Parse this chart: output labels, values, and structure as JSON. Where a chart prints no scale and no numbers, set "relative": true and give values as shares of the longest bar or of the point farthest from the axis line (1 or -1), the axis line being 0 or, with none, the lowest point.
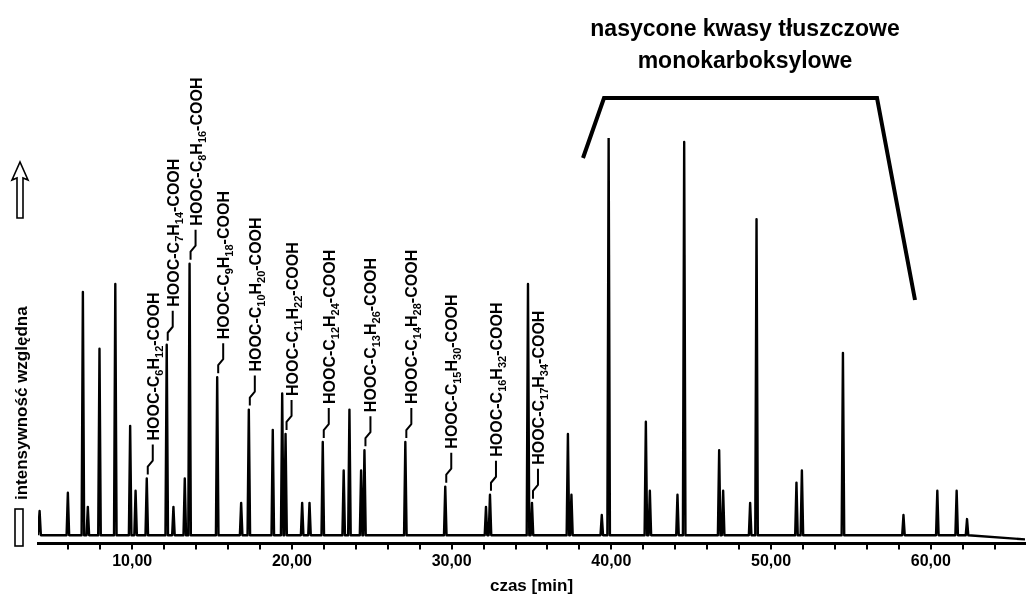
{
  "chart_data": {
    "type": "line",
    "relative": true,
    "xlabel": "czas [min]",
    "ylabel": "intensywność względna",
    "marker": "none",
    "line_style": "solid",
    "xlim": [
      4.1,
      65.9
    ],
    "xticks": [
      {
        "value": 6,
        "label": null
      },
      {
        "value": 8,
        "label": null
      },
      {
        "value": 10,
        "label": "10,00"
      },
      {
        "value": 12,
        "label": null
      },
      {
        "value": 14,
        "label": null
      },
      {
        "value": 16,
        "label": null
      },
      {
        "value": 18,
        "label": null
      },
      {
        "value": 20,
        "label": "20,00"
      },
      {
        "value": 22,
        "label": null
      },
      {
        "value": 24,
        "label": null
      },
      {
        "value": 26,
        "label": null
      },
      {
        "value": 28,
        "label": null
      },
      {
        "value": 30,
        "label": "30,00"
      },
      {
        "value": 32,
        "label": null
      },
      {
        "value": 34,
        "label": null
      },
      {
        "value": 36,
        "label": null
      },
      {
        "value": 38,
        "label": null
      },
      {
        "value": 40,
        "label": "40,00"
      },
      {
        "value": 42,
        "label": null
      },
      {
        "value": 44,
        "label": null
      },
      {
        "value": 46,
        "label": null
      },
      {
        "value": 48,
        "label": null
      },
      {
        "value": 50,
        "label": "50,00"
      },
      {
        "value": 52,
        "label": null
      },
      {
        "value": 54,
        "label": null
      },
      {
        "value": 56,
        "label": null
      },
      {
        "value": 58,
        "label": null
      },
      {
        "value": 60,
        "label": "60,00"
      },
      {
        "value": 62,
        "label": null
      },
      {
        "value": 64,
        "label": null
      }
    ],
    "series": [
      {
        "color": "#000000",
        "x": [
          4.1,
          4.12,
          4.2,
          4.28,
          5.89,
          5.97,
          6.05,
          6.83,
          6.91,
          6.99,
          7.14,
          7.22,
          7.3,
          7.87,
          7.95,
          8.03,
          8.86,
          8.94,
          9.02,
          9.79,
          9.87,
          9.95,
          10.13,
          10.21,
          10.29,
          10.83,
          10.91,
          10.99,
          12.08,
          12.16,
          12.24,
          12.5,
          12.58,
          12.66,
          13.21,
          13.29,
          13.37,
          13.51,
          13.59,
          13.67,
          15.24,
          15.32,
          15.4,
          16.74,
          16.82,
          16.9,
          17.22,
          17.3,
          17.38,
          18.72,
          18.8,
          18.88,
          19.31,
          19.39,
          19.47,
          19.52,
          19.6,
          19.68,
          20.56,
          20.64,
          20.72,
          21.02,
          21.1,
          21.18,
          21.85,
          21.93,
          22.01,
          23.16,
          23.24,
          23.32,
          23.52,
          23.6,
          23.68,
          24.25,
          24.33,
          24.41,
          24.46,
          24.54,
          24.62,
          27.02,
          27.1,
          27.18,
          29.52,
          29.6,
          29.68,
          32.07,
          32.15,
          32.23,
          32.32,
          32.4,
          32.48,
          34.7,
          34.78,
          34.86,
          34.95,
          35.03,
          35.11,
          37.2,
          37.28,
          37.36,
          37.42,
          37.5,
          37.58,
          39.32,
          39.4,
          39.48,
          39.75,
          39.83,
          39.91,
          42.08,
          42.16,
          42.24,
          42.33,
          42.41,
          42.49,
          44.06,
          44.14,
          44.22,
          44.48,
          44.56,
          44.64,
          46.67,
          46.75,
          46.83,
          46.92,
          47.0,
          47.08,
          48.61,
          48.69,
          48.77,
          49.01,
          49.09,
          49.17,
          51.51,
          51.59,
          51.67,
          51.85,
          51.93,
          52.01,
          54.42,
          54.5,
          54.58,
          58.21,
          58.29,
          58.37,
          60.33,
          60.41,
          60.49,
          61.54,
          61.62,
          61.7,
          62.19,
          62.27,
          62.35,
          65.9
        ],
        "values": [
          0.02,
          0.02,
          0.08,
          0.02,
          0.02,
          0.125,
          0.02,
          0.02,
          0.62,
          0.02,
          0.02,
          0.09,
          0.02,
          0.02,
          0.48,
          0.02,
          0.02,
          0.64,
          0.02,
          0.02,
          0.29,
          0.02,
          0.02,
          0.13,
          0.02,
          0.02,
          0.16,
          0.02,
          0.02,
          0.49,
          0.02,
          0.02,
          0.09,
          0.02,
          0.02,
          0.16,
          0.02,
          0.02,
          0.69,
          0.02,
          0.02,
          0.41,
          0.02,
          0.02,
          0.1,
          0.02,
          0.02,
          0.33,
          0.02,
          0.02,
          0.28,
          0.02,
          0.02,
          0.37,
          0.02,
          0.02,
          0.27,
          0.02,
          0.02,
          0.1,
          0.02,
          0.02,
          0.1,
          0.02,
          0.02,
          0.25,
          0.02,
          0.02,
          0.18,
          0.02,
          0.02,
          0.33,
          0.02,
          0.02,
          0.18,
          0.02,
          0.02,
          0.23,
          0.02,
          0.02,
          0.25,
          0.02,
          0.02,
          0.14,
          0.02,
          0.02,
          0.09,
          0.02,
          0.02,
          0.12,
          0.02,
          0.02,
          0.64,
          0.02,
          0.02,
          0.1,
          0.02,
          0.02,
          0.27,
          0.02,
          0.02,
          0.12,
          0.02,
          0.02,
          0.07,
          0.02,
          0.02,
          1,
          0.02,
          0.02,
          0.3,
          0.02,
          0.02,
          0.13,
          0.02,
          0.02,
          0.12,
          0.02,
          0.02,
          0.99,
          0.02,
          0.02,
          0.23,
          0.02,
          0.02,
          0.13,
          0.02,
          0.02,
          0.1,
          0.02,
          0.02,
          0.8,
          0.02,
          0.02,
          0.15,
          0.02,
          0.02,
          0.18,
          0.02,
          0.02,
          0.47,
          0.02,
          0.02,
          0.07,
          0.02,
          0.02,
          0.13,
          0.02,
          0.02,
          0.13,
          0.02,
          0.02,
          0.06,
          0.02,
          0.01
        ]
      }
    ],
    "annotations": [
      "nasycone kwasy tłuszczowe monokarboksylowe",
      {
        "text": "HOOC-C$_{6}$H$_{12}$-COOH",
        "x": 10.91,
        "y": 0.16
      },
      {
        "text": "HOOC-C$_{7}$H$_{14}$-COOH",
        "x": 12.16,
        "y": 0.49
      },
      {
        "text": "HOOC-C$_{8}$H$_{16}$-COOH",
        "x": 13.59,
        "y": 0.69
      },
      {
        "text": "HOOC-C$_{9}$H$_{18}$-COOH",
        "x": 15.32,
        "y": 0.41
      },
      {
        "text": "HOOC-C$_{10}$H$_{20}$-COOH",
        "x": 17.3,
        "y": 0.33
      },
      {
        "text": "HOOC-C$_{11}$H$_{22}$-COOH",
        "x": 19.6,
        "y": 0.27
      },
      {
        "text": "HOOC-C$_{12}$H$_{24}$-COOH",
        "x": 21.93,
        "y": 0.25
      },
      {
        "text": "HOOC-C$_{13}$H$_{26}$-COOH",
        "x": 24.54,
        "y": 0.23
      },
      {
        "text": "HOOC-C$_{14}$H$_{28}$-COOH",
        "x": 27.1,
        "y": 0.25
      },
      {
        "text": "HOOC-C$_{15}$H$_{30}$-COOH",
        "x": 29.6,
        "y": 0.14
      },
      {
        "text": "HOOC-C$_{16}$H$_{32}$-COOH",
        "x": 32.4,
        "y": 0.12
      },
      {
        "text": "HOOC-C$_{17}$H$_{34}$-COOH",
        "x": 35.03,
        "y": 0.1
      }
    ]
  }
}
